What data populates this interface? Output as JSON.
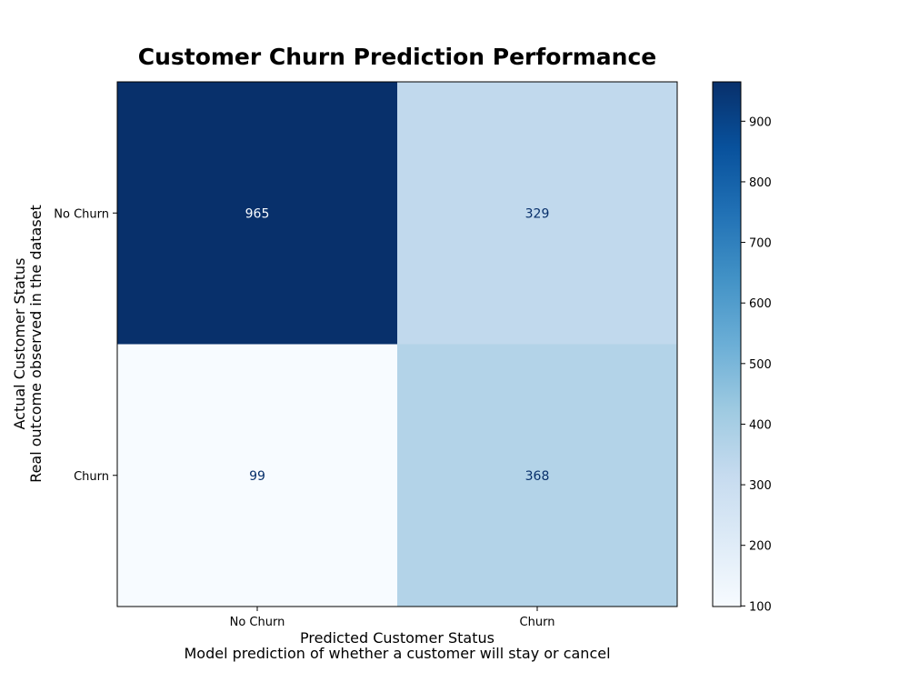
{
  "chart_data": {
    "type": "heatmap",
    "title": "Customer Churn Prediction Performance",
    "xlabel": "Predicted Customer Status",
    "xlabel_sub": "Model prediction of whether a customer will stay or cancel",
    "ylabel": "Actual Customer Status",
    "ylabel_sub": "Real outcome observed in the dataset",
    "x_categories": [
      "No Churn",
      "Churn"
    ],
    "y_categories": [
      "No Churn",
      "Churn"
    ],
    "values": [
      [
        965,
        329
      ],
      [
        99,
        368
      ]
    ],
    "colormap": "Blues",
    "colorbar": {
      "range": [
        99,
        965
      ],
      "ticks": [
        100,
        200,
        300,
        400,
        500,
        600,
        700,
        800,
        900
      ]
    },
    "colors": {
      "low": "#f7fbff",
      "high": "#08306b",
      "text_on_light": "#08306b",
      "text_on_dark": "#f7fbff"
    }
  }
}
